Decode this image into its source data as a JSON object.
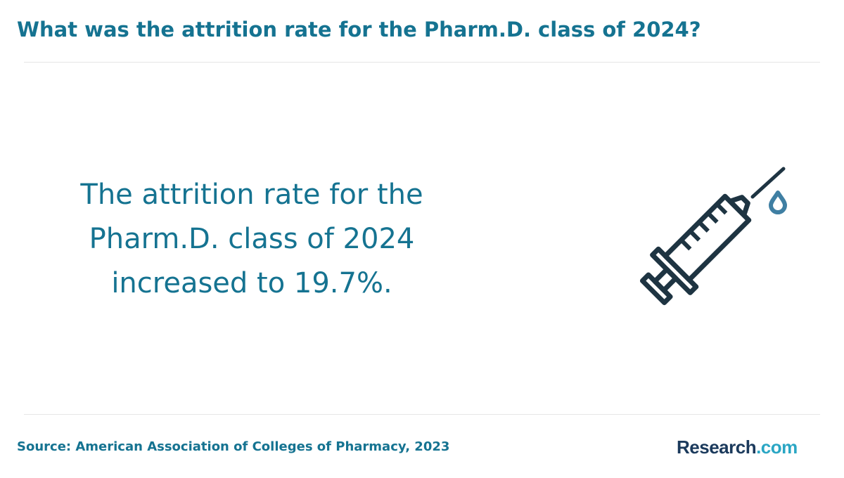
{
  "header": {
    "title": "What was the attrition rate for the Pharm.D. class of 2024?"
  },
  "main": {
    "statement_lines": [
      "The attrition rate for the",
      "Pharm.D. class of 2024",
      "increased to 19.7%."
    ],
    "illustration_icon": "syringe-icon"
  },
  "footer": {
    "source": "Source: American Association of Colleges of Pharmacy, 2023",
    "logo_brand": "Research",
    "logo_tld": ".com"
  },
  "colors": {
    "accent": "#157391",
    "icon_stroke": "#1e3442",
    "drop": "#3f7fa3",
    "logo_brand": "#1b3a5c",
    "logo_tld": "#2aa6c4"
  }
}
